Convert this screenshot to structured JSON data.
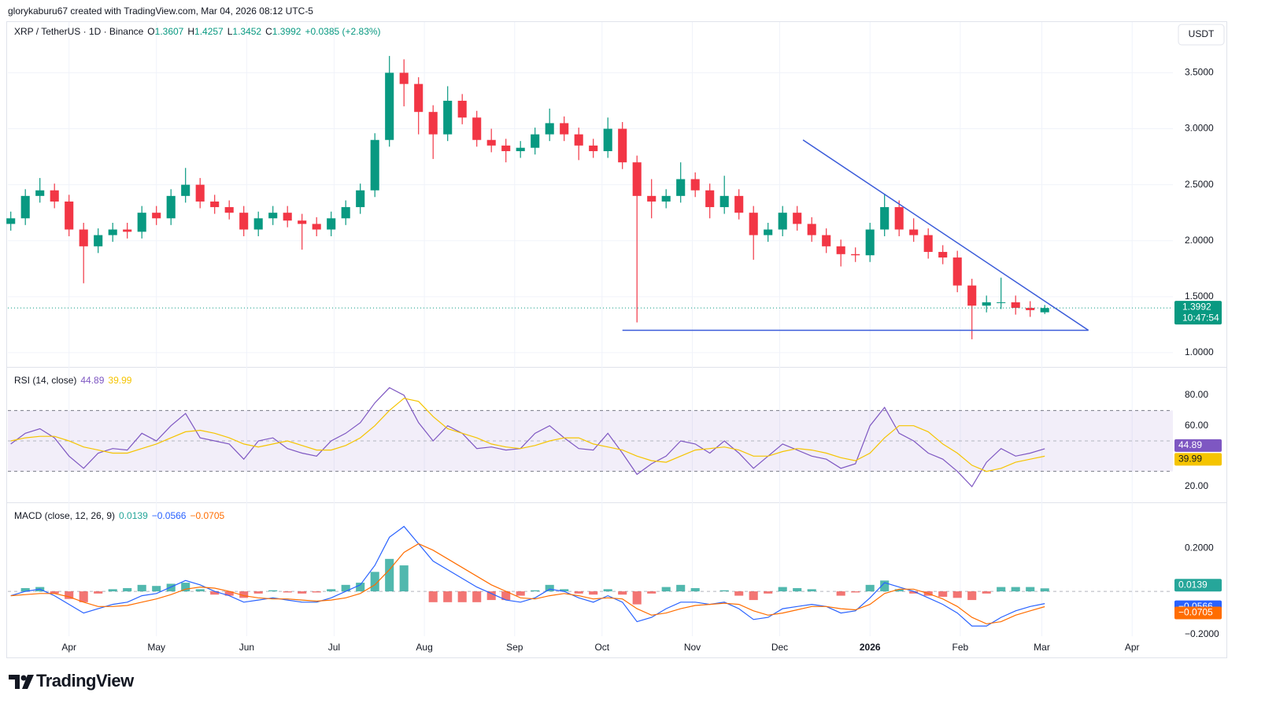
{
  "header": {
    "attribution": "glorykaburu67 created with TradingView.com, Mar 04, 2026 08:12 UTC-5"
  },
  "chart_data": [
    {
      "type": "candlestick",
      "title": "XRP / TetherUS · 1D · Binance",
      "ohlc_keys": [
        "O",
        "H",
        "L",
        "C"
      ],
      "change_label": "+0.0385 (+2.83%)",
      "currency": "USDT",
      "countdown": "10:47:54",
      "up_color": "#089981",
      "down_color": "#f23645",
      "x": [
        -20,
        -15,
        -10,
        -5,
        0,
        5,
        10,
        15,
        20,
        25,
        30,
        35,
        40,
        45,
        50,
        55,
        60,
        65,
        70,
        75,
        80,
        85,
        90,
        95,
        100,
        105,
        110,
        115,
        120,
        125,
        130,
        135,
        140,
        145,
        150,
        155,
        160,
        165,
        170,
        175,
        180,
        185,
        190,
        195,
        200,
        205,
        210,
        215,
        220,
        225,
        230,
        235,
        240,
        245,
        250,
        255,
        260,
        265,
        270,
        275,
        280,
        285,
        290,
        295,
        300,
        305,
        310,
        315,
        320,
        325,
        330,
        335
      ],
      "open": [
        2.15,
        2.2,
        2.4,
        2.45,
        2.35,
        2.1,
        1.95,
        2.05,
        2.1,
        2.08,
        2.25,
        2.2,
        2.4,
        2.5,
        2.35,
        2.3,
        2.25,
        2.1,
        2.2,
        2.25,
        2.18,
        2.15,
        2.1,
        2.2,
        2.3,
        2.45,
        2.9,
        3.5,
        3.4,
        3.15,
        2.95,
        3.25,
        3.1,
        2.9,
        2.85,
        2.8,
        2.83,
        2.95,
        3.05,
        2.95,
        2.85,
        2.8,
        3.0,
        2.7,
        2.4,
        2.35,
        2.4,
        2.55,
        2.45,
        2.3,
        2.4,
        2.25,
        2.05,
        2.1,
        2.25,
        2.15,
        2.05,
        1.95,
        1.88,
        1.87,
        2.1,
        2.3,
        2.1,
        2.05,
        1.9,
        1.85,
        1.6,
        1.42,
        1.45,
        1.45,
        1.4,
        1.3607
      ],
      "high": [
        2.26,
        2.46,
        2.56,
        2.51,
        2.41,
        2.16,
        2.11,
        2.16,
        2.16,
        2.31,
        2.31,
        2.46,
        2.65,
        2.56,
        2.41,
        2.36,
        2.31,
        2.26,
        2.31,
        2.31,
        2.24,
        2.21,
        2.26,
        2.36,
        2.51,
        2.96,
        3.65,
        3.62,
        3.46,
        3.21,
        3.38,
        3.31,
        3.16,
        3.0,
        2.91,
        2.89,
        3.01,
        3.18,
        3.11,
        3.01,
        2.91,
        3.1,
        3.06,
        2.76,
        2.55,
        2.46,
        2.7,
        2.61,
        2.51,
        2.58,
        2.46,
        2.31,
        2.16,
        2.31,
        2.31,
        2.21,
        2.11,
        2.01,
        1.94,
        2.16,
        2.42,
        2.36,
        2.2,
        2.11,
        1.96,
        1.91,
        1.66,
        1.51,
        1.67,
        1.51,
        1.46,
        1.4257
      ],
      "low": [
        2.09,
        2.14,
        2.34,
        2.29,
        2.04,
        1.62,
        1.89,
        1.99,
        2.02,
        2.02,
        2.14,
        2.14,
        2.34,
        2.29,
        2.24,
        2.19,
        2.04,
        2.04,
        2.14,
        2.12,
        1.92,
        2.04,
        2.04,
        2.14,
        2.24,
        2.39,
        2.84,
        3.2,
        2.95,
        2.73,
        2.89,
        3.04,
        2.84,
        2.79,
        2.7,
        2.74,
        2.77,
        2.89,
        2.89,
        2.72,
        2.74,
        2.74,
        2.64,
        1.27,
        2.2,
        2.29,
        2.34,
        2.39,
        2.2,
        2.24,
        2.19,
        1.83,
        1.99,
        2.04,
        2.09,
        1.99,
        1.89,
        1.77,
        1.81,
        1.81,
        2.04,
        2.04,
        1.99,
        1.84,
        1.79,
        1.54,
        1.12,
        1.36,
        1.39,
        1.34,
        1.32,
        1.3452
      ],
      "close": [
        2.2,
        2.4,
        2.45,
        2.35,
        2.1,
        1.95,
        2.05,
        2.1,
        2.08,
        2.25,
        2.2,
        2.4,
        2.5,
        2.35,
        2.3,
        2.25,
        2.1,
        2.2,
        2.25,
        2.18,
        2.15,
        2.1,
        2.2,
        2.3,
        2.45,
        2.9,
        3.5,
        3.4,
        3.15,
        2.95,
        3.25,
        3.1,
        2.9,
        2.85,
        2.8,
        2.83,
        2.95,
        3.05,
        2.95,
        2.85,
        2.8,
        3.0,
        2.7,
        2.4,
        2.35,
        2.4,
        2.55,
        2.45,
        2.3,
        2.4,
        2.25,
        2.05,
        2.1,
        2.25,
        2.15,
        2.05,
        1.95,
        1.88,
        1.87,
        2.1,
        2.3,
        2.1,
        2.05,
        1.9,
        1.85,
        1.6,
        1.42,
        1.45,
        1.45,
        1.4,
        1.38,
        1.3992
      ],
      "trendlines": [
        {
          "x": [
            252,
            350
          ],
          "y": [
            2.9,
            1.2
          ],
          "color": "#3a5bd9"
        },
        {
          "x": [
            190,
            350
          ],
          "y": [
            1.2,
            1.2
          ],
          "color": "#3a5bd9"
        }
      ],
      "xlim": [
        -21,
        379
      ],
      "xticks": [
        {
          "value": 0,
          "label": "Apr"
        },
        {
          "value": 30,
          "label": "May"
        },
        {
          "value": 61,
          "label": "Jun"
        },
        {
          "value": 91,
          "label": "Jul"
        },
        {
          "value": 122,
          "label": "Aug"
        },
        {
          "value": 153,
          "label": "Sep"
        },
        {
          "value": 183,
          "label": "Oct"
        },
        {
          "value": 214,
          "label": "Nov"
        },
        {
          "value": 244,
          "label": "Dec"
        },
        {
          "value": 275,
          "label": "2026"
        },
        {
          "value": 306,
          "label": "Feb"
        },
        {
          "value": 334,
          "label": "Mar"
        },
        {
          "value": 365,
          "label": "Apr"
        }
      ],
      "ylim": [
        0.88,
        3.96
      ],
      "yticks": [
        {
          "value": 1,
          "label": "1.0000"
        },
        {
          "value": 1.5,
          "label": "1.5000"
        },
        {
          "value": 2,
          "label": "2.0000"
        },
        {
          "value": 2.5,
          "label": "2.5000"
        },
        {
          "value": 3,
          "label": "3.0000"
        },
        {
          "value": 3.5,
          "label": "3.5000"
        }
      ],
      "grid": true
    },
    {
      "type": "rsi",
      "title": "RSI (14, close)",
      "x": [
        -20,
        -15,
        -10,
        -5,
        0,
        5,
        10,
        15,
        20,
        25,
        30,
        35,
        40,
        45,
        50,
        55,
        60,
        65,
        70,
        75,
        80,
        85,
        90,
        95,
        100,
        105,
        110,
        115,
        120,
        125,
        130,
        135,
        140,
        145,
        150,
        155,
        160,
        165,
        170,
        175,
        180,
        185,
        190,
        195,
        200,
        205,
        210,
        215,
        220,
        225,
        230,
        235,
        240,
        245,
        250,
        255,
        260,
        265,
        270,
        275,
        280,
        285,
        290,
        295,
        300,
        305,
        310,
        315,
        320,
        325,
        330,
        335
      ],
      "series": [
        {
          "color": "#7e57c2",
          "values": [
            48,
            55,
            58,
            52,
            40,
            32,
            42,
            45,
            44,
            55,
            50,
            60,
            68,
            52,
            50,
            48,
            38,
            50,
            52,
            45,
            42,
            40,
            50,
            55,
            62,
            75,
            85,
            80,
            62,
            50,
            60,
            55,
            45,
            46,
            44,
            45,
            55,
            60,
            52,
            45,
            44,
            55,
            42,
            28,
            35,
            40,
            50,
            48,
            42,
            50,
            42,
            32,
            40,
            48,
            44,
            40,
            38,
            32,
            35,
            60,
            72,
            55,
            50,
            42,
            38,
            30,
            20,
            36,
            45,
            40,
            42,
            44.89
          ]
        },
        {
          "color": "#f5c400",
          "values": [
            50,
            52,
            53,
            53,
            50,
            46,
            44,
            42,
            42,
            45,
            48,
            52,
            56,
            57,
            55,
            52,
            48,
            46,
            48,
            50,
            47,
            44,
            44,
            47,
            52,
            60,
            70,
            78,
            76,
            66,
            58,
            55,
            52,
            48,
            46,
            45,
            47,
            50,
            52,
            52,
            48,
            46,
            44,
            40,
            37,
            36,
            40,
            44,
            45,
            46,
            44,
            40,
            40,
            43,
            45,
            44,
            42,
            39,
            37,
            42,
            52,
            60,
            60,
            56,
            48,
            42,
            34,
            30,
            32,
            36,
            38,
            39.99
          ]
        }
      ],
      "band": [
        30,
        70
      ],
      "midline": 50,
      "ylim": [
        9.65,
        97.6
      ],
      "yticks": [
        {
          "value": 20,
          "label": "20.00"
        },
        {
          "value": 60,
          "label": "60.00"
        },
        {
          "value": 80,
          "label": "80.00"
        }
      ]
    },
    {
      "type": "macd",
      "title": "MACD (close, 12, 26, 9)",
      "x": [
        -20,
        -15,
        -10,
        -5,
        0,
        5,
        10,
        15,
        20,
        25,
        30,
        35,
        40,
        45,
        50,
        55,
        60,
        65,
        70,
        75,
        80,
        85,
        90,
        95,
        100,
        105,
        110,
        115,
        120,
        125,
        130,
        135,
        140,
        145,
        150,
        155,
        160,
        165,
        170,
        175,
        180,
        185,
        190,
        195,
        200,
        205,
        210,
        215,
        220,
        225,
        230,
        235,
        240,
        245,
        250,
        255,
        260,
        265,
        270,
        275,
        280,
        285,
        290,
        295,
        300,
        305,
        310,
        315,
        320,
        325,
        330,
        335
      ],
      "histogram": {
        "up_color": "#26a69a",
        "down_color": "#ef5350",
        "values": [
          0,
          0.015,
          0.02,
          -0.01,
          -0.035,
          -0.05,
          -0.01,
          0.01,
          0.015,
          0.03,
          0.025,
          0.035,
          0.04,
          0.01,
          -0.015,
          -0.02,
          -0.03,
          -0.01,
          0.005,
          -0.005,
          -0.01,
          -0.005,
          0.01,
          0.03,
          0.04,
          0.09,
          0.15,
          0.12,
          0,
          -0.05,
          -0.05,
          -0.05,
          -0.05,
          -0.04,
          -0.04,
          -0.02,
          0.005,
          0.03,
          0.01,
          -0.01,
          -0.015,
          0.01,
          -0.015,
          -0.06,
          -0.01,
          0.02,
          0.03,
          0.015,
          0,
          0.005,
          -0.02,
          -0.04,
          -0.01,
          0.02,
          0.015,
          0.01,
          0,
          -0.02,
          -0.005,
          0.03,
          0.05,
          0.01,
          -0.01,
          -0.02,
          -0.025,
          -0.03,
          -0.04,
          -0.01,
          0.02,
          0.02,
          0.02,
          0.0139
        ]
      },
      "series": [
        {
          "color": "#2962ff",
          "last_value_label": "−0.0566",
          "values": [
            -0.02,
            0,
            0.01,
            -0.02,
            -0.06,
            -0.1,
            -0.08,
            -0.06,
            -0.05,
            -0.02,
            -0.01,
            0.02,
            0.05,
            0.03,
            0,
            -0.02,
            -0.05,
            -0.04,
            -0.03,
            -0.04,
            -0.05,
            -0.05,
            -0.03,
            0,
            0.03,
            0.12,
            0.25,
            0.3,
            0.22,
            0.14,
            0.1,
            0.06,
            0.02,
            -0.01,
            -0.04,
            -0.05,
            -0.03,
            0.01,
            0,
            -0.03,
            -0.05,
            -0.02,
            -0.05,
            -0.14,
            -0.12,
            -0.08,
            -0.05,
            -0.05,
            -0.06,
            -0.05,
            -0.08,
            -0.13,
            -0.12,
            -0.08,
            -0.07,
            -0.06,
            -0.07,
            -0.1,
            -0.09,
            -0.03,
            0.04,
            0.02,
            0,
            -0.03,
            -0.06,
            -0.1,
            -0.16,
            -0.16,
            -0.12,
            -0.09,
            -0.07,
            -0.0566
          ]
        },
        {
          "color": "#ff6d00",
          "last_value_label": "−0.0705",
          "values": [
            -0.02,
            -0.015,
            -0.01,
            -0.01,
            -0.025,
            -0.05,
            -0.07,
            -0.07,
            -0.065,
            -0.05,
            -0.035,
            -0.015,
            0.01,
            0.02,
            0.015,
            0,
            -0.02,
            -0.03,
            -0.035,
            -0.035,
            -0.04,
            -0.045,
            -0.04,
            -0.03,
            -0.01,
            0.03,
            0.1,
            0.18,
            0.22,
            0.19,
            0.15,
            0.11,
            0.07,
            0.03,
            0,
            -0.03,
            -0.035,
            -0.02,
            -0.01,
            -0.02,
            -0.035,
            -0.03,
            -0.035,
            -0.08,
            -0.11,
            -0.1,
            -0.08,
            -0.065,
            -0.06,
            -0.055,
            -0.06,
            -0.09,
            -0.11,
            -0.1,
            -0.085,
            -0.07,
            -0.07,
            -0.08,
            -0.085,
            -0.06,
            -0.01,
            0.01,
            0.01,
            -0.01,
            -0.035,
            -0.07,
            -0.12,
            -0.15,
            -0.14,
            -0.11,
            -0.09,
            -0.0705
          ]
        }
      ],
      "ylim": [
        -0.207,
        0.404
      ],
      "yticks": [
        {
          "value": -0.2,
          "label": "−0.2000"
        },
        {
          "value": 0.2,
          "label": "0.2000"
        }
      ]
    }
  ],
  "footer": {
    "brand": "TradingView"
  }
}
